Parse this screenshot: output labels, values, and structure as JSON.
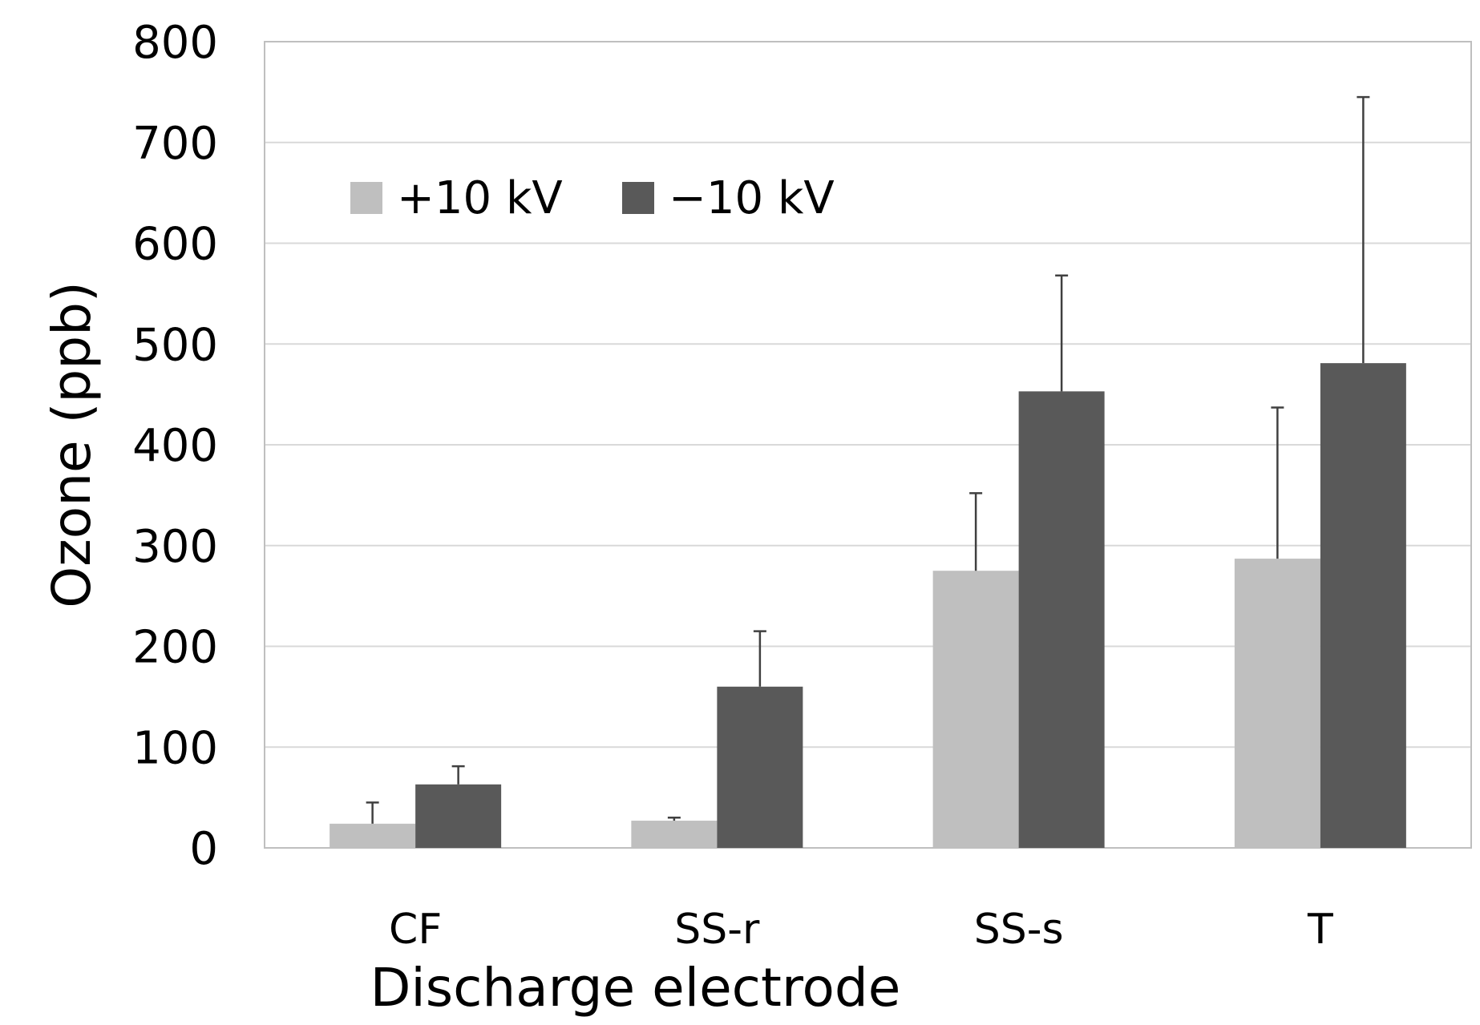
{
  "chart_data": {
    "type": "bar",
    "title": "",
    "xlabel": "Discharge electrode",
    "ylabel": "Ozone (ppb)",
    "categories": [
      "CF",
      "SS-r",
      "SS-s",
      "T"
    ],
    "series": [
      {
        "name": "+10 kV",
        "color": "#bfbfbf",
        "values": [
          24,
          27,
          275,
          287
        ],
        "error": [
          21,
          3,
          77,
          150
        ]
      },
      {
        "name": "−10 kV",
        "color": "#595959",
        "values": [
          63,
          160,
          453,
          481
        ],
        "error": [
          18,
          55,
          115,
          264
        ]
      }
    ],
    "ylim": [
      0,
      800
    ],
    "yticks": [
      0,
      100,
      200,
      300,
      400,
      500,
      600,
      700,
      800
    ],
    "grid": true,
    "legend_position": "top-left"
  }
}
